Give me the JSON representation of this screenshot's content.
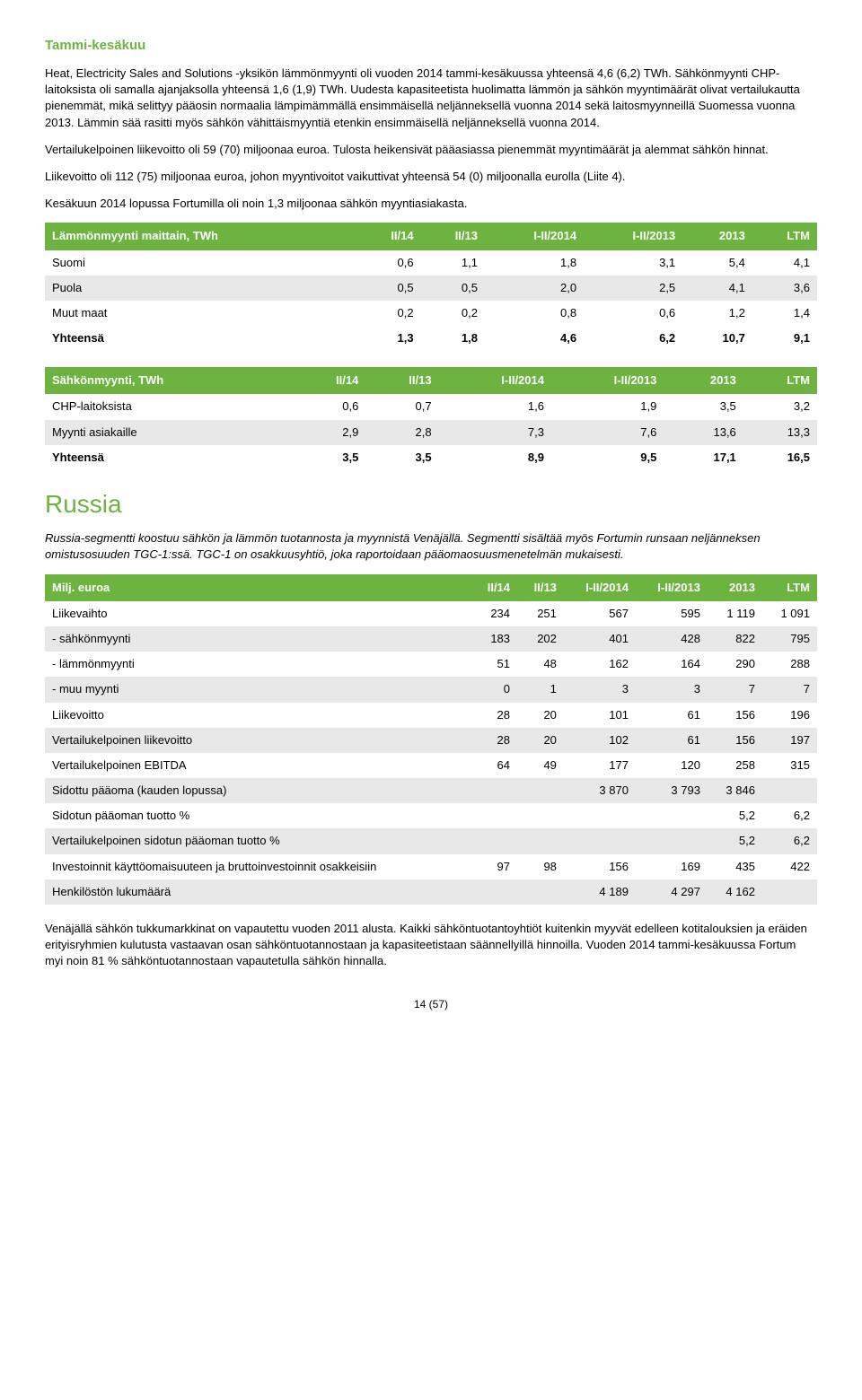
{
  "section1_title": "Tammi-kesäkuu",
  "para1": "Heat, Electricity Sales and Solutions -yksikön lämmönmyynti oli vuoden 2014 tammi-kesäkuussa yhteensä 4,6 (6,2) TWh. Sähkönmyynti CHP-laitoksista oli samalla ajanjaksolla yhteensä 1,6 (1,9) TWh. Uudesta kapasiteetista huolimatta lämmön ja sähkön myyntimäärät olivat vertailukautta pienemmät, mikä selittyy pääosin normaalia lämpimämmällä ensimmäisellä neljänneksellä vuonna 2014 sekä laitosmyynneillä Suomessa vuonna 2013. Lämmin sää rasitti myös sähkön vähittäismyyntiä etenkin ensimmäisellä neljänneksellä vuonna 2014.",
  "para2": "Vertailukelpoinen liikevoitto oli 59 (70) miljoonaa euroa. Tulosta heikensivät pääasiassa pienemmät myyntimäärät ja alemmat sähkön hinnat.",
  "para3": "Liikevoitto oli 112 (75) miljoonaa euroa, johon myyntivoitot vaikuttivat yhteensä 54 (0) miljoonalla eurolla (Liite 4).",
  "para4": "Kesäkuun 2014 lopussa Fortumilla oli noin 1,3 miljoonaa sähkön myyntiasiakasta.",
  "table1": {
    "title": "Lämmönmyynti maittain, TWh",
    "cols": [
      "II/14",
      "II/13",
      "I-II/2014",
      "I-II/2013",
      "2013",
      "LTM"
    ],
    "rows": [
      {
        "label": "Suomi",
        "vals": [
          "0,6",
          "1,1",
          "1,8",
          "3,1",
          "5,4",
          "4,1"
        ],
        "alt": false
      },
      {
        "label": "Puola",
        "vals": [
          "0,5",
          "0,5",
          "2,0",
          "2,5",
          "4,1",
          "3,6"
        ],
        "alt": true
      },
      {
        "label": "Muut maat",
        "vals": [
          "0,2",
          "0,2",
          "0,8",
          "0,6",
          "1,2",
          "1,4"
        ],
        "alt": false
      }
    ],
    "total": {
      "label": "Yhteensä",
      "vals": [
        "1,3",
        "1,8",
        "4,6",
        "6,2",
        "10,7",
        "9,1"
      ]
    }
  },
  "table2": {
    "title": "Sähkönmyynti, TWh",
    "cols": [
      "II/14",
      "II/13",
      "I-II/2014",
      "I-II/2013",
      "2013",
      "LTM"
    ],
    "rows": [
      {
        "label": "CHP-laitoksista",
        "vals": [
          "0,6",
          "0,7",
          "1,6",
          "1,9",
          "3,5",
          "3,2"
        ],
        "alt": false
      },
      {
        "label": "Myynti asiakaille",
        "vals": [
          "2,9",
          "2,8",
          "7,3",
          "7,6",
          "13,6",
          "13,3"
        ],
        "alt": true
      }
    ],
    "total": {
      "label": "Yhteensä",
      "vals": [
        "3,5",
        "3,5",
        "8,9",
        "9,5",
        "17,1",
        "16,5"
      ]
    }
  },
  "russia_title": "Russia",
  "russia_intro": "Russia-segmentti koostuu sähkön ja lämmön tuotannosta ja myynnistä Venäjällä. Segmentti sisältää myös Fortumin runsaan neljänneksen omistusosuuden TGC-1:ssä. TGC-1 on osakkuusyhtiö, joka raportoidaan pääomaosuusmenetelmän mukaisesti.",
  "table3": {
    "title": "Milj. euroa",
    "cols": [
      "II/14",
      "II/13",
      "I-II/2014",
      "I-II/2013",
      "2013",
      "LTM"
    ],
    "rows": [
      {
        "label": "Liikevaihto",
        "vals": [
          "234",
          "251",
          "567",
          "595",
          "1 119",
          "1 091"
        ],
        "alt": false
      },
      {
        "label": "- sähkönmyynti",
        "vals": [
          "183",
          "202",
          "401",
          "428",
          "822",
          "795"
        ],
        "alt": true
      },
      {
        "label": "- lämmönmyynti",
        "vals": [
          "51",
          "48",
          "162",
          "164",
          "290",
          "288"
        ],
        "alt": false
      },
      {
        "label": "- muu myynti",
        "vals": [
          "0",
          "1",
          "3",
          "3",
          "7",
          "7"
        ],
        "alt": true
      },
      {
        "label": "Liikevoitto",
        "vals": [
          "28",
          "20",
          "101",
          "61",
          "156",
          "196"
        ],
        "alt": false
      },
      {
        "label": "Vertailukelpoinen liikevoitto",
        "vals": [
          "28",
          "20",
          "102",
          "61",
          "156",
          "197"
        ],
        "alt": true
      },
      {
        "label": "Vertailukelpoinen EBITDA",
        "vals": [
          "64",
          "49",
          "177",
          "120",
          "258",
          "315"
        ],
        "alt": false
      },
      {
        "label": "Sidottu pääoma (kauden lopussa)",
        "vals": [
          "",
          "",
          "3 870",
          "3 793",
          "3 846",
          ""
        ],
        "alt": true
      },
      {
        "label": "Sidotun pääoman tuotto %",
        "vals": [
          "",
          "",
          "",
          "",
          "5,2",
          "6,2"
        ],
        "alt": false
      },
      {
        "label": "Vertailukelpoinen sidotun pääoman tuotto %",
        "vals": [
          "",
          "",
          "",
          "",
          "5,2",
          "6,2"
        ],
        "alt": true
      },
      {
        "label": "Investoinnit käyttöomaisuuteen ja bruttoinvestoinnit osakkeisiin",
        "vals": [
          "97",
          "98",
          "156",
          "169",
          "435",
          "422"
        ],
        "alt": false
      },
      {
        "label": "Henkilöstön lukumäärä",
        "vals": [
          "",
          "",
          "4 189",
          "4 297",
          "4 162",
          ""
        ],
        "alt": true
      }
    ]
  },
  "para_bottom": "Venäjällä sähkön tukkumarkkinat on vapautettu vuoden 2011 alusta. Kaikki sähköntuotantoyhtiöt kuitenkin myyvät edelleen kotitalouksien ja eräiden erityisryhmien kulutusta vastaavan osan sähköntuotannostaan ja kapasiteetistaan säännellyillä hinnoilla. Vuoden 2014 tammi-kesäkuussa Fortum myi noin 81 % sähköntuotannostaan vapautetulla sähkön hinnalla.",
  "page_num": "14 (57)"
}
